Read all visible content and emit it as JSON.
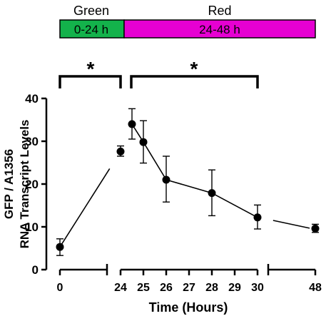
{
  "phases": {
    "green": {
      "label": "Green",
      "range": "0-24 h",
      "color": "#13b24b"
    },
    "red": {
      "label": "Red",
      "range": "24-48 h",
      "color": "#e600d2"
    }
  },
  "significance": {
    "marker": "*",
    "brackets": [
      {
        "from": 0,
        "to": 24
      },
      {
        "from": 24.5,
        "to": 30
      }
    ]
  },
  "chart_data": {
    "type": "scatter",
    "xlabel": "Time (Hours)",
    "ylabel_line1": "GFP / A1356",
    "ylabel_line2": "RNA Transcript Levels",
    "ylim": [
      0,
      40
    ],
    "yticks": [
      0,
      10,
      20,
      30,
      40
    ],
    "x_ticks": [
      "0",
      "24",
      "25",
      "26",
      "27",
      "28",
      "29",
      "30",
      "48"
    ],
    "axis_breaks": true,
    "grid": false,
    "series": [
      {
        "points": [
          {
            "x": 0,
            "y": 5.3,
            "err_low": 3.3,
            "err_high": 7.2
          },
          {
            "x": 24,
            "y": 27.6,
            "err_low": 26.5,
            "err_high": 28.9
          },
          {
            "x": 24.5,
            "y": 34.0,
            "err_low": 30.5,
            "err_high": 37.6
          },
          {
            "x": 25,
            "y": 29.8,
            "err_low": 24.9,
            "err_high": 34.8
          },
          {
            "x": 26,
            "y": 21.0,
            "err_low": 15.8,
            "err_high": 26.5
          },
          {
            "x": 28,
            "y": 17.9,
            "err_low": 12.6,
            "err_high": 23.3
          },
          {
            "x": 30,
            "y": 12.2,
            "err_low": 9.5,
            "err_high": 15.1
          },
          {
            "x": 48,
            "y": 9.6,
            "err_low": 8.7,
            "err_high": 10.6
          }
        ]
      }
    ]
  }
}
